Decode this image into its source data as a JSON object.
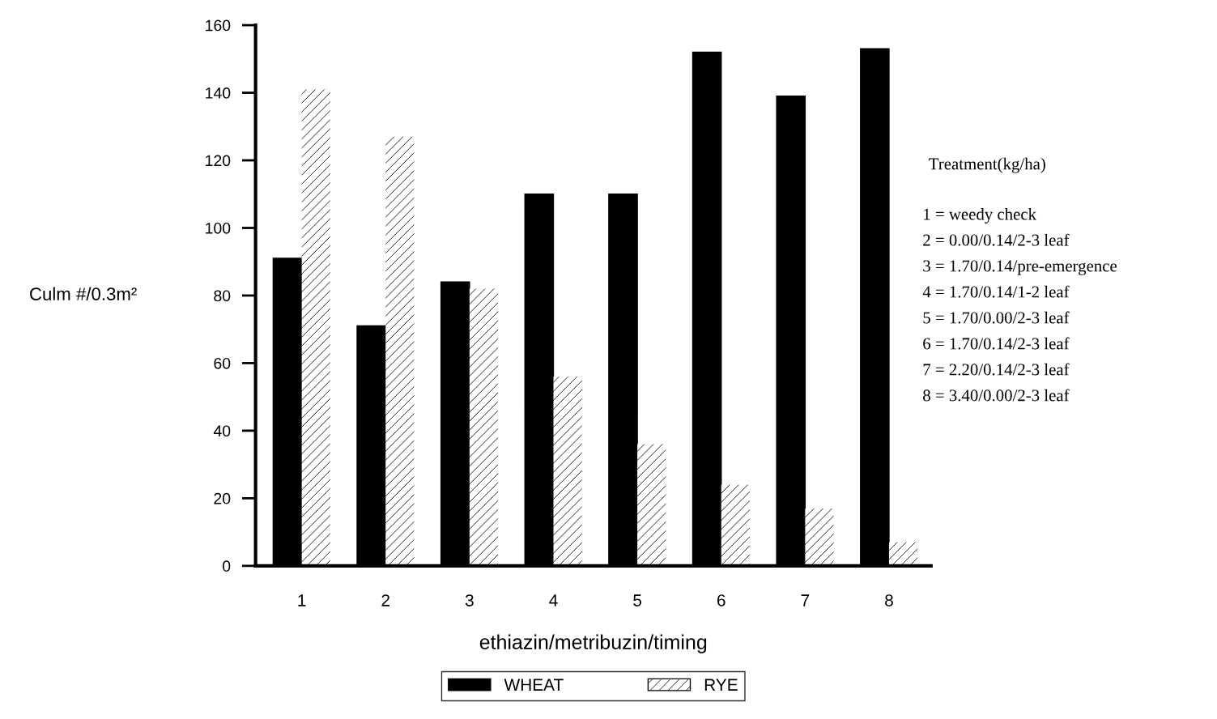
{
  "chart_data": {
    "type": "bar",
    "xlabel": "ethiazin/metribuzin/timing",
    "ylabel": "Culm #/0.3m²",
    "categories": [
      "1",
      "2",
      "3",
      "4",
      "5",
      "6",
      "7",
      "8"
    ],
    "series": [
      {
        "name": "WHEAT",
        "color": "#000000",
        "values": [
          91,
          71,
          84,
          110,
          110,
          152,
          139,
          153
        ]
      },
      {
        "name": "RYE",
        "color": "#ffffff",
        "values": [
          141,
          127,
          82,
          56,
          36,
          24,
          17,
          7
        ]
      }
    ],
    "ylim": [
      0,
      160
    ],
    "yticks": [
      0,
      20,
      40,
      60,
      80,
      100,
      120,
      140,
      160
    ],
    "legend": "bottom",
    "grid": false,
    "annotations": [
      "Treatment(kg/ha)",
      "1 = weedy check",
      "2 = 0.00/0.14/2-3 leaf",
      "3 = 1.70/0.14/pre-emergence",
      "4 = 1.70/0.14/1-2 leaf",
      "5 = 1.70/0.00/2-3 leaf",
      "6 = 1.70/0.14/2-3 leaf",
      "7 = 2.20/0.14/2-3 leaf",
      "8 = 3.40/0.00/2-3 leaf"
    ]
  }
}
